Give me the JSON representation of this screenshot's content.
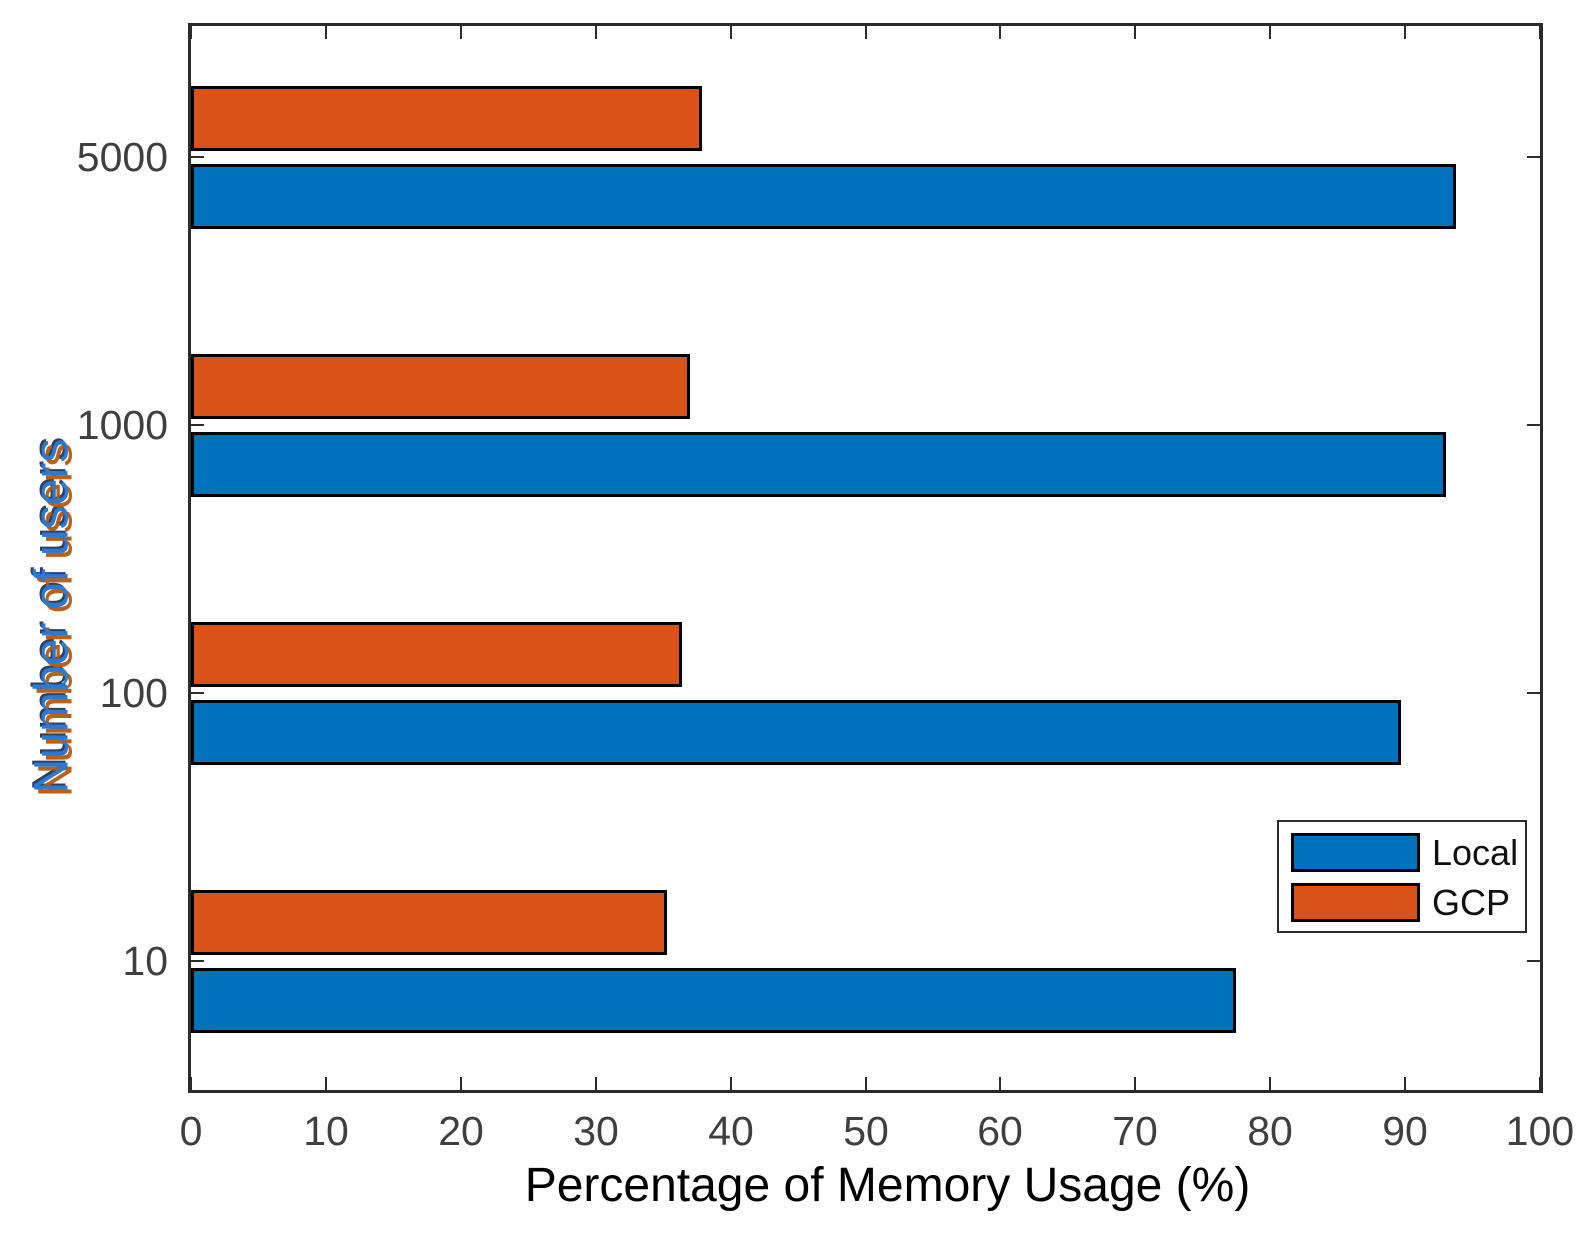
{
  "figure": {
    "background": "#ffffff",
    "axes_color": "#2b2b2b",
    "tick_label_color": "#3f3f3f",
    "xlabel_color": "#000000",
    "ylabel_color": "#2a7ad4",
    "ylabel_shadow_color": "#b5570d",
    "bar_edge_color": "#000000"
  },
  "chart_data": {
    "type": "bar",
    "orientation": "horizontal",
    "xlabel": "Percentage of Memory Usage (%)",
    "ylabel": "Number of users",
    "xlim": [
      0,
      100
    ],
    "xticks": [
      0,
      10,
      20,
      30,
      40,
      50,
      60,
      70,
      80,
      90,
      100
    ],
    "categories": [
      "10",
      "100",
      "1000",
      "5000"
    ],
    "series": [
      {
        "name": "Local",
        "color": "#0072BD",
        "values": [
          77.5,
          89.7,
          93.0,
          93.8
        ]
      },
      {
        "name": "GCP",
        "color": "#D95319",
        "values": [
          35.3,
          36.4,
          37.0,
          37.9
        ]
      }
    ],
    "legend": {
      "position": "lower right",
      "entries": [
        "Local",
        "GCP"
      ]
    },
    "grid": false
  }
}
